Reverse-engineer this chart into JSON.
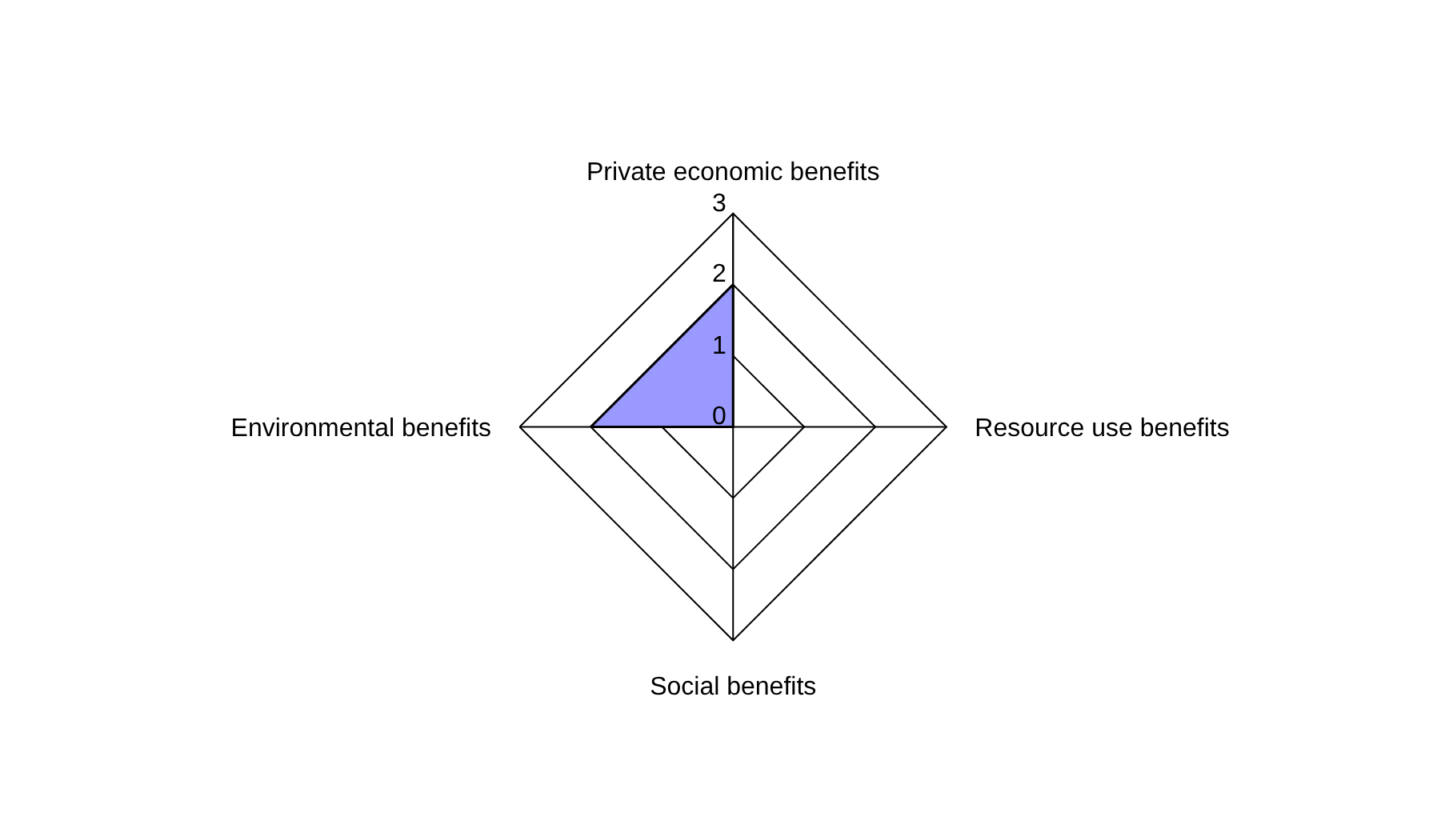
{
  "chart_data": {
    "type": "radar",
    "categories": [
      "Private economic benefits",
      "Resource use benefits",
      "Social benefits",
      "Environmental benefits"
    ],
    "series": [
      {
        "color": "#9999ff",
        "values": [
          2,
          0,
          0,
          2
        ]
      }
    ],
    "ylim": [
      0,
      3
    ],
    "yticks": [
      0,
      1,
      2,
      3
    ],
    "grid": true
  }
}
